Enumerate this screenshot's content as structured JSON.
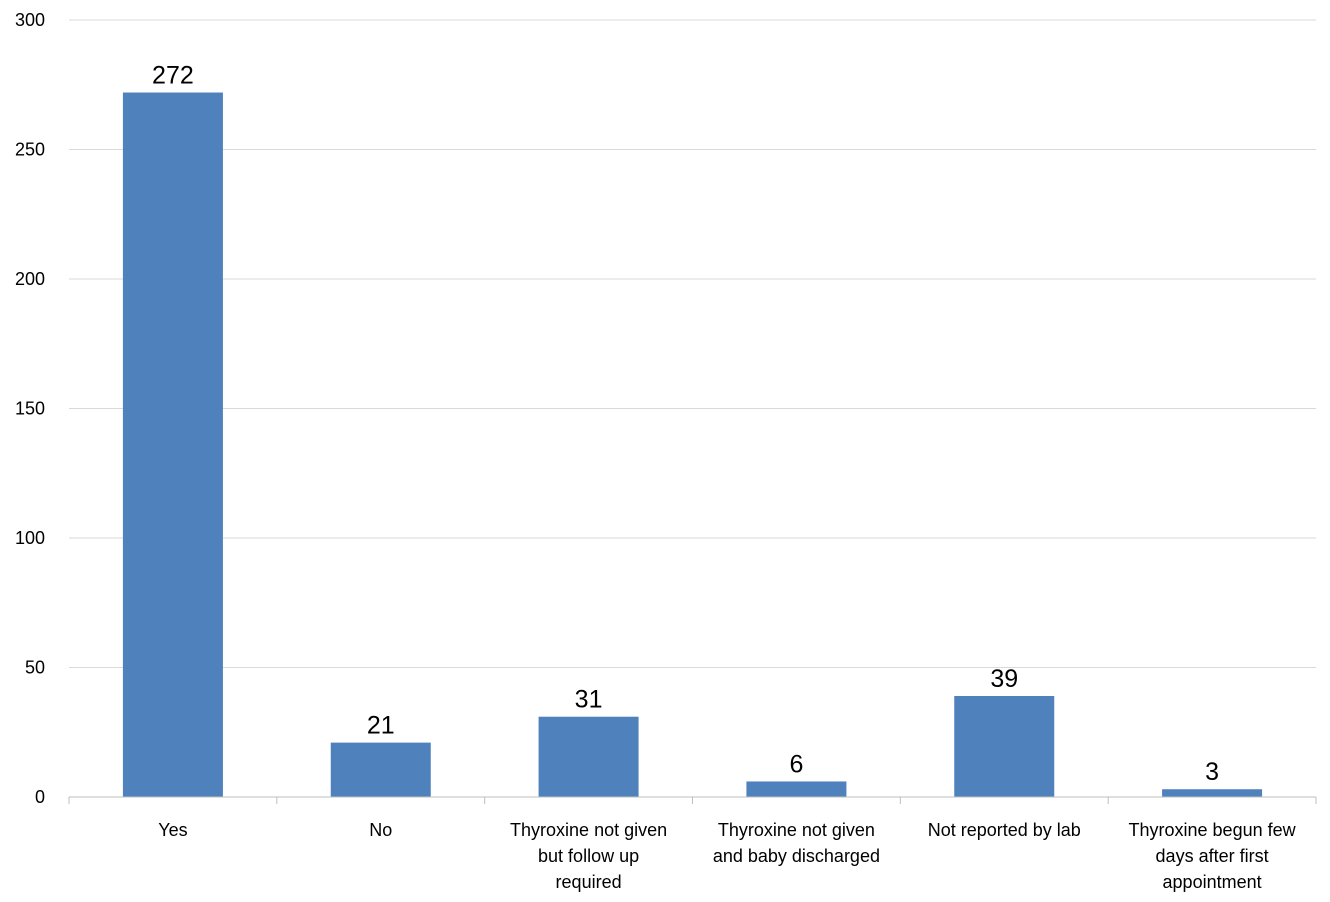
{
  "chart_data": {
    "type": "bar",
    "categories": [
      "Yes",
      "No",
      "Thyroxine not given but follow up required",
      "Thyroxine not given and baby discharged",
      "Not reported by lab",
      "Thyroxine begun few days after first appointment"
    ],
    "category_label_lines": [
      [
        "Yes"
      ],
      [
        "No"
      ],
      [
        "Thyroxine not given",
        "but follow up",
        "required"
      ],
      [
        "Thyroxine not given",
        "and baby discharged"
      ],
      [
        "Not reported by lab"
      ],
      [
        "Thyroxine begun few",
        "days after first",
        "appointment"
      ]
    ],
    "values": [
      272,
      21,
      31,
      6,
      39,
      3
    ],
    "data_labels": [
      "272",
      "21",
      "31",
      "6",
      "39",
      "3"
    ],
    "y_ticks": [
      "0",
      "50",
      "100",
      "150",
      "200",
      "250",
      "300"
    ],
    "ylim": [
      0,
      300
    ],
    "grid": true,
    "legend": "none",
    "bar_color": "#4f81bd",
    "grid_color": "#d9d9d9",
    "axis_color": "#bfbfbf"
  }
}
